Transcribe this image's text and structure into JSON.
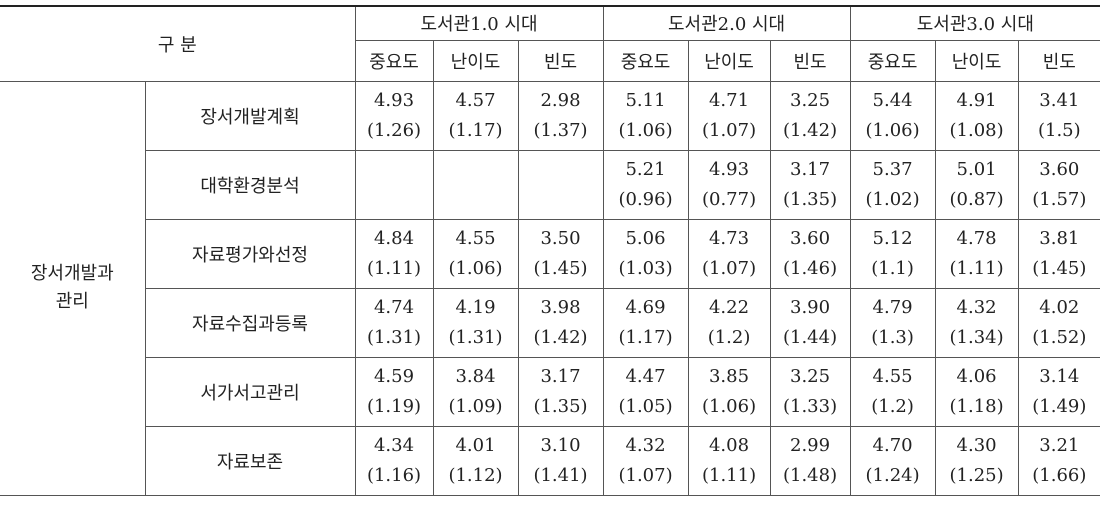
{
  "table": {
    "header": {
      "corner": "구 분",
      "groups": [
        "도서관1.0 시대",
        "도서관2.0 시대",
        "도서관3.0 시대"
      ],
      "subheaders": [
        "중요도",
        "난이도",
        "빈도"
      ]
    },
    "category_lines": [
      "장서개발과",
      "관리"
    ],
    "rows": [
      {
        "label": "장서개발계획",
        "cells": [
          [
            "4.93",
            "(1.26)"
          ],
          [
            "4.57",
            "(1.17)"
          ],
          [
            "2.98",
            "(1.37)"
          ],
          [
            "5.11",
            "(1.06)"
          ],
          [
            "4.71",
            "(1.07)"
          ],
          [
            "3.25",
            "(1.42)"
          ],
          [
            "5.44",
            "(1.06)"
          ],
          [
            "4.91",
            "(1.08)"
          ],
          [
            "3.41",
            "(1.5)"
          ]
        ]
      },
      {
        "label": "대학환경분석",
        "cells": [
          null,
          null,
          null,
          [
            "5.21",
            "(0.96)"
          ],
          [
            "4.93",
            "(0.77)"
          ],
          [
            "3.17",
            "(1.35)"
          ],
          [
            "5.37",
            "(1.02)"
          ],
          [
            "5.01",
            "(0.87)"
          ],
          [
            "3.60",
            "(1.57)"
          ]
        ]
      },
      {
        "label": "자료평가와선정",
        "cells": [
          [
            "4.84",
            "(1.11)"
          ],
          [
            "4.55",
            "(1.06)"
          ],
          [
            "3.50",
            "(1.45)"
          ],
          [
            "5.06",
            "(1.03)"
          ],
          [
            "4.73",
            "(1.07)"
          ],
          [
            "3.60",
            "(1.46)"
          ],
          [
            "5.12",
            "(1.1)"
          ],
          [
            "4.78",
            "(1.11)"
          ],
          [
            "3.81",
            "(1.45)"
          ]
        ]
      },
      {
        "label": "자료수집과등록",
        "cells": [
          [
            "4.74",
            "(1.31)"
          ],
          [
            "4.19",
            "(1.31)"
          ],
          [
            "3.98",
            "(1.42)"
          ],
          [
            "4.69",
            "(1.17)"
          ],
          [
            "4.22",
            "(1.2)"
          ],
          [
            "3.90",
            "(1.44)"
          ],
          [
            "4.79",
            "(1.3)"
          ],
          [
            "4.32",
            "(1.34)"
          ],
          [
            "4.02",
            "(1.52)"
          ]
        ]
      },
      {
        "label": "서가서고관리",
        "cells": [
          [
            "4.59",
            "(1.19)"
          ],
          [
            "3.84",
            "(1.09)"
          ],
          [
            "3.17",
            "(1.35)"
          ],
          [
            "4.47",
            "(1.05)"
          ],
          [
            "3.85",
            "(1.06)"
          ],
          [
            "3.25",
            "(1.33)"
          ],
          [
            "4.55",
            "(1.2)"
          ],
          [
            "4.06",
            "(1.18)"
          ],
          [
            "3.14",
            "(1.49)"
          ]
        ]
      },
      {
        "label": "자료보존",
        "cells": [
          [
            "4.34",
            "(1.16)"
          ],
          [
            "4.01",
            "(1.12)"
          ],
          [
            "3.10",
            "(1.41)"
          ],
          [
            "4.32",
            "(1.07)"
          ],
          [
            "4.08",
            "(1.11)"
          ],
          [
            "2.99",
            "(1.48)"
          ],
          [
            "4.70",
            "(1.24)"
          ],
          [
            "4.30",
            "(1.25)"
          ],
          [
            "3.21",
            "(1.66)"
          ]
        ]
      }
    ]
  }
}
